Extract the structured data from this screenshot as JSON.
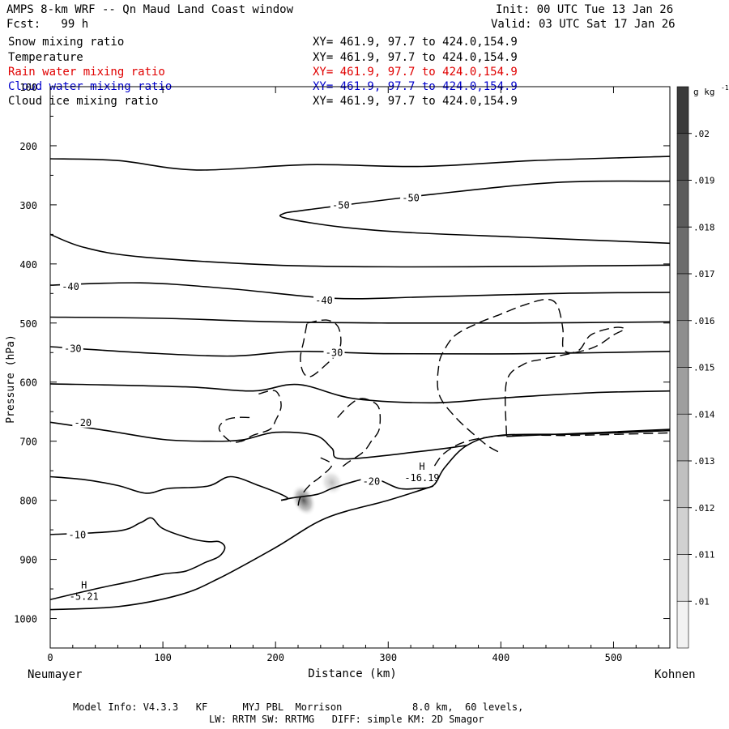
{
  "header": {
    "title": "AMPS 8-km WRF -- Qn Maud Land Coast window",
    "forecast": "Fcst:   99 h",
    "init": "Init: 00 UTC Tue 13 Jan 26",
    "valid": "Valid: 03 UTC Sat 17 Jan 26"
  },
  "fields": [
    {
      "name": "Snow mixing ratio",
      "xy": "XY= 461.9, 97.7 to 424.0,154.9",
      "color": "#000000"
    },
    {
      "name": "Temperature",
      "xy": "XY= 461.9, 97.7 to 424.0,154.9",
      "color": "#000000"
    },
    {
      "name": "Rain water mixing ratio",
      "xy": "XY= 461.9, 97.7 to 424.0,154.9",
      "color": "#e00000"
    },
    {
      "name": "Cloud water mixing ratio",
      "xy": "XY= 461.9, 97.7 to 424.0,154.9",
      "color": "#0000cc"
    },
    {
      "name": "Cloud ice mixing ratio",
      "xy": "XY= 461.9, 97.7 to 424.0,154.9",
      "color": "#000000"
    }
  ],
  "footer": {
    "model_info": "Model Info: V4.3.3   KF      MYJ PBL  Morrison            8.0 km,  60 levels,",
    "physics": "LW: RRTM SW: RRTMG   DIFF: simple KM: 2D Smagor"
  },
  "chart_data": {
    "type": "contour",
    "xlabel": "Distance (km)",
    "ylabel": "Pressure (hPa)",
    "xlim": [
      0,
      550
    ],
    "ylim": [
      1050,
      100
    ],
    "x_ticks": [
      0,
      100,
      200,
      300,
      400,
      500
    ],
    "y_ticks": [
      1000,
      900,
      800,
      700,
      600,
      500,
      400,
      300,
      200,
      100
    ],
    "x_start_label": "Neumayer",
    "x_end_label": "Kohnen",
    "colorbar": {
      "units": "g kg",
      "units_exp": "-1",
      "ticks": [
        ".02",
        ".019",
        ".018",
        ".017",
        ".016",
        ".015",
        ".014",
        ".013",
        ".012",
        ".011",
        ".01"
      ],
      "top_color": "#3a3a3a",
      "bottom_color": "#f2f2f2"
    },
    "temperature_labels": [
      {
        "text": "-50",
        "x": 258,
        "p": 302
      },
      {
        "text": "-50",
        "x": 320,
        "p": 290
      },
      {
        "text": "-40",
        "x": 18,
        "p": 440
      },
      {
        "text": "-40",
        "x": 243,
        "p": 463
      },
      {
        "text": "-30",
        "x": 20,
        "p": 545
      },
      {
        "text": "-30",
        "x": 252,
        "p": 552
      },
      {
        "text": "-20",
        "x": 29,
        "p": 670
      },
      {
        "text": "-20",
        "x": 285,
        "p": 770
      },
      {
        "text": "-10",
        "x": 24,
        "p": 860
      }
    ],
    "extrema": [
      {
        "symbol": "H",
        "value": "-5.21",
        "x": 30,
        "p": 963
      },
      {
        "symbol": "H",
        "value": "-16.19",
        "x": 330,
        "p": 762
      }
    ],
    "isotherms": [
      {
        "value": -60,
        "points": [
          [
            0,
            222
          ],
          [
            60,
            225
          ],
          [
            130,
            241
          ],
          [
            230,
            232
          ],
          [
            330,
            235
          ],
          [
            430,
            225
          ],
          [
            550,
            218
          ]
        ]
      },
      {
        "value": -50,
        "points": [
          [
            550,
            260
          ],
          [
            450,
            262
          ],
          [
            340,
            282
          ],
          [
            230,
            308
          ],
          [
            207,
            315
          ],
          [
            210,
            323
          ],
          [
            260,
            338
          ],
          [
            320,
            347
          ],
          [
            420,
            355
          ],
          [
            550,
            365
          ]
        ]
      },
      {
        "value": -45,
        "points": [
          [
            0,
            350
          ],
          [
            30,
            372
          ],
          [
            80,
            388
          ],
          [
            200,
            402
          ],
          [
            320,
            405
          ],
          [
            430,
            404
          ],
          [
            550,
            402
          ]
        ]
      },
      {
        "value": -40,
        "points": [
          [
            0,
            436
          ],
          [
            80,
            432
          ],
          [
            160,
            442
          ],
          [
            250,
            458
          ],
          [
            330,
            456
          ],
          [
            450,
            450
          ],
          [
            550,
            448
          ]
        ]
      },
      {
        "value": -35,
        "points": [
          [
            0,
            490
          ],
          [
            100,
            492
          ],
          [
            200,
            498
          ],
          [
            300,
            500
          ],
          [
            420,
            500
          ],
          [
            550,
            498
          ]
        ]
      },
      {
        "value": -30,
        "points": [
          [
            0,
            540
          ],
          [
            80,
            550
          ],
          [
            160,
            556
          ],
          [
            220,
            548
          ],
          [
            300,
            552
          ],
          [
            420,
            552
          ],
          [
            550,
            548
          ]
        ]
      },
      {
        "value": -25,
        "points": [
          [
            0,
            603
          ],
          [
            120,
            608
          ],
          [
            180,
            615
          ],
          [
            220,
            604
          ],
          [
            270,
            628
          ],
          [
            340,
            635
          ],
          [
            400,
            627
          ],
          [
            480,
            618
          ],
          [
            550,
            615
          ]
        ]
      },
      {
        "value": -20,
        "points": [
          [
            0,
            668
          ],
          [
            50,
            682
          ],
          [
            100,
            697
          ],
          [
            140,
            700
          ],
          [
            170,
            698
          ],
          [
            200,
            685
          ],
          [
            235,
            690
          ],
          [
            250,
            712
          ],
          [
            260,
            730
          ],
          [
            330,
            717
          ],
          [
            370,
            707
          ]
        ]
      },
      {
        "value": -20,
        "points": [
          [
            550,
            682
          ],
          [
            470,
            688
          ],
          [
            400,
            690
          ],
          [
            370,
            707
          ],
          [
            350,
            745
          ],
          [
            340,
            775
          ],
          [
            325,
            780
          ],
          [
            310,
            780
          ],
          [
            295,
            768
          ],
          [
            285,
            762
          ],
          [
            270,
            768
          ],
          [
            250,
            780
          ],
          [
            237,
            790
          ],
          [
            215,
            796
          ],
          [
            205,
            800
          ]
        ]
      },
      {
        "value": -15,
        "points": [
          [
            0,
            760
          ],
          [
            30,
            765
          ],
          [
            60,
            775
          ],
          [
            85,
            788
          ],
          [
            105,
            780
          ],
          [
            140,
            776
          ],
          [
            160,
            760
          ],
          [
            185,
            775
          ],
          [
            210,
            795
          ],
          [
            205,
            800
          ]
        ]
      },
      {
        "value": -10,
        "points": [
          [
            0,
            858
          ],
          [
            60,
            852
          ],
          [
            80,
            838
          ],
          [
            90,
            830
          ],
          [
            100,
            848
          ],
          [
            125,
            865
          ],
          [
            140,
            870
          ],
          [
            150,
            870
          ],
          [
            155,
            880
          ],
          [
            150,
            895
          ],
          [
            138,
            905
          ],
          [
            120,
            920
          ],
          [
            100,
            925
          ],
          [
            70,
            938
          ],
          [
            40,
            950
          ],
          [
            0,
            968
          ]
        ]
      },
      {
        "value": -5,
        "points": [
          [
            0,
            985
          ],
          [
            60,
            980
          ],
          [
            115,
            960
          ],
          [
            150,
            932
          ],
          [
            200,
            880
          ],
          [
            245,
            830
          ],
          [
            300,
            800
          ],
          [
            340,
            776
          ]
        ]
      },
      {
        "value": -5,
        "points": [
          [
            405,
            692
          ],
          [
            550,
            680
          ]
        ]
      }
    ],
    "dashed_contours": [
      {
        "points": [
          [
            548,
            686
          ],
          [
            470,
            690
          ],
          [
            440,
            690
          ],
          [
            405,
            690
          ],
          [
            370,
            700
          ],
          [
            350,
            720
          ],
          [
            340,
            745
          ]
        ]
      },
      {
        "points": [
          [
            405,
            690
          ],
          [
            405,
            600
          ],
          [
            420,
            570
          ],
          [
            440,
            560
          ],
          [
            480,
            543
          ],
          [
            500,
            520
          ],
          [
            510,
            510
          ],
          [
            500,
            508
          ],
          [
            480,
            520
          ],
          [
            470,
            545
          ],
          [
            460,
            550
          ],
          [
            455,
            540
          ],
          [
            455,
            510
          ],
          [
            450,
            470
          ],
          [
            440,
            460
          ],
          [
            420,
            470
          ],
          [
            400,
            485
          ],
          [
            380,
            500
          ],
          [
            360,
            520
          ],
          [
            350,
            545
          ],
          [
            345,
            570
          ],
          [
            345,
            620
          ],
          [
            360,
            660
          ],
          [
            380,
            695
          ],
          [
            390,
            710
          ],
          [
            400,
            720
          ]
        ]
      },
      {
        "points": [
          [
            240,
            728
          ],
          [
            250,
            740
          ],
          [
            240,
            760
          ],
          [
            230,
            775
          ],
          [
            222,
            795
          ],
          [
            220,
            810
          ]
        ]
      },
      {
        "points": [
          [
            255,
            660
          ],
          [
            265,
            640
          ],
          [
            275,
            628
          ],
          [
            285,
            632
          ],
          [
            292,
            645
          ],
          [
            292,
            680
          ],
          [
            285,
            700
          ],
          [
            278,
            718
          ],
          [
            265,
            735
          ],
          [
            258,
            745
          ]
        ]
      },
      {
        "points": [
          [
            228,
            500
          ],
          [
            245,
            495
          ],
          [
            255,
            505
          ],
          [
            258,
            530
          ],
          [
            255,
            550
          ],
          [
            245,
            570
          ],
          [
            232,
            590
          ],
          [
            225,
            585
          ],
          [
            222,
            560
          ],
          [
            225,
            530
          ],
          [
            228,
            500
          ]
        ]
      },
      {
        "points": [
          [
            185,
            620
          ],
          [
            200,
            615
          ],
          [
            205,
            640
          ],
          [
            200,
            665
          ],
          [
            195,
            680
          ],
          [
            180,
            690
          ],
          [
            170,
            700
          ],
          [
            160,
            700
          ],
          [
            150,
            680
          ],
          [
            155,
            665
          ],
          [
            165,
            660
          ],
          [
            178,
            660
          ]
        ]
      }
    ],
    "shading": [
      {
        "x": 225,
        "p": 800,
        "rx": 10,
        "rp": 28,
        "opacity": 0.85
      },
      {
        "x": 250,
        "p": 770,
        "rx": 10,
        "rp": 22,
        "opacity": 0.35
      }
    ]
  }
}
